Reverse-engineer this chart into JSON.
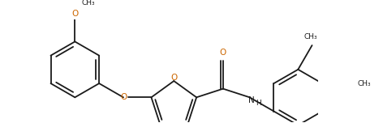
{
  "bg_color": "#ffffff",
  "line_color": "#1a1a1a",
  "o_color": "#cc6600",
  "bond_lw": 1.3,
  "figsize": [
    4.72,
    1.52
  ],
  "dpi": 100,
  "xlim": [
    0.0,
    10.2
  ],
  "ylim": [
    -0.5,
    3.2
  ]
}
